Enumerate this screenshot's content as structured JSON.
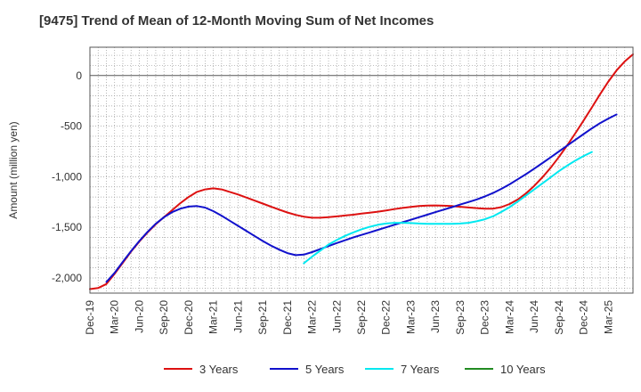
{
  "chart_data": {
    "type": "line",
    "title": "[9475]  Trend of Mean of 12-Month Moving Sum of Net Incomes",
    "xlabel": "",
    "ylabel": "Amount (million yen)",
    "ylim": [
      -2150,
      280
    ],
    "yticks": [
      0,
      -500,
      -1000,
      -1500,
      -2000
    ],
    "ytick_labels": [
      "0",
      "-500",
      "-1,000",
      "-1,500",
      "-2,000"
    ],
    "xticks": [
      "Dec-19",
      "Mar-20",
      "Jun-20",
      "Sep-20",
      "Dec-20",
      "Mar-21",
      "Jun-21",
      "Sep-21",
      "Dec-21",
      "Mar-22",
      "Jun-22",
      "Sep-22",
      "Dec-22",
      "Mar-23",
      "Jun-23",
      "Sep-23",
      "Dec-23",
      "Mar-24",
      "Jun-24",
      "Sep-24",
      "Dec-24",
      "Mar-25"
    ],
    "grid": true,
    "legend_position": "bottom",
    "series": [
      {
        "name": "3 Years",
        "color": "#dd1111",
        "points": [
          [
            0,
            -2110
          ],
          [
            1,
            -2100
          ],
          [
            2,
            -2060
          ],
          [
            3,
            -1960
          ],
          [
            4,
            -1850
          ],
          [
            5,
            -1740
          ],
          [
            6,
            -1640
          ],
          [
            7,
            -1550
          ],
          [
            8,
            -1470
          ],
          [
            9,
            -1400
          ],
          [
            10,
            -1330
          ],
          [
            11,
            -1260
          ],
          [
            12,
            -1200
          ],
          [
            13,
            -1150
          ],
          [
            14,
            -1125
          ],
          [
            15,
            -1115
          ],
          [
            16,
            -1125
          ],
          [
            17,
            -1150
          ],
          [
            18,
            -1175
          ],
          [
            19,
            -1205
          ],
          [
            20,
            -1235
          ],
          [
            21,
            -1265
          ],
          [
            22,
            -1295
          ],
          [
            23,
            -1325
          ],
          [
            24,
            -1353
          ],
          [
            25,
            -1377
          ],
          [
            26,
            -1395
          ],
          [
            27,
            -1405
          ],
          [
            28,
            -1405
          ],
          [
            29,
            -1400
          ],
          [
            30,
            -1392
          ],
          [
            31,
            -1383
          ],
          [
            32,
            -1375
          ],
          [
            33,
            -1365
          ],
          [
            34,
            -1355
          ],
          [
            35,
            -1345
          ],
          [
            36,
            -1333
          ],
          [
            37,
            -1320
          ],
          [
            38,
            -1308
          ],
          [
            39,
            -1298
          ],
          [
            40,
            -1290
          ],
          [
            41,
            -1285
          ],
          [
            42,
            -1284
          ],
          [
            43,
            -1286
          ],
          [
            44,
            -1290
          ],
          [
            45,
            -1297
          ],
          [
            46,
            -1304
          ],
          [
            47,
            -1310
          ],
          [
            48,
            -1315
          ],
          [
            49,
            -1315
          ],
          [
            50,
            -1300
          ],
          [
            51,
            -1270
          ],
          [
            52,
            -1225
          ],
          [
            53,
            -1165
          ],
          [
            54,
            -1090
          ],
          [
            55,
            -1005
          ],
          [
            56,
            -910
          ],
          [
            57,
            -805
          ],
          [
            58,
            -690
          ],
          [
            59,
            -570
          ],
          [
            60,
            -445
          ],
          [
            61,
            -315
          ],
          [
            62,
            -185
          ],
          [
            63,
            -60
          ],
          [
            64,
            50
          ],
          [
            65,
            140
          ],
          [
            66,
            210
          ]
        ]
      },
      {
        "name": "5 Years",
        "color": "#1111cc",
        "points": [
          [
            2,
            -2040
          ],
          [
            3,
            -1950
          ],
          [
            4,
            -1840
          ],
          [
            5,
            -1735
          ],
          [
            6,
            -1635
          ],
          [
            7,
            -1545
          ],
          [
            8,
            -1465
          ],
          [
            9,
            -1400
          ],
          [
            10,
            -1350
          ],
          [
            11,
            -1315
          ],
          [
            12,
            -1295
          ],
          [
            13,
            -1290
          ],
          [
            14,
            -1305
          ],
          [
            15,
            -1340
          ],
          [
            16,
            -1385
          ],
          [
            17,
            -1435
          ],
          [
            18,
            -1485
          ],
          [
            19,
            -1535
          ],
          [
            20,
            -1585
          ],
          [
            21,
            -1635
          ],
          [
            22,
            -1680
          ],
          [
            23,
            -1720
          ],
          [
            24,
            -1755
          ],
          [
            25,
            -1775
          ],
          [
            26,
            -1770
          ],
          [
            27,
            -1745
          ],
          [
            28,
            -1715
          ],
          [
            29,
            -1685
          ],
          [
            30,
            -1655
          ],
          [
            31,
            -1628
          ],
          [
            32,
            -1600
          ],
          [
            33,
            -1575
          ],
          [
            34,
            -1550
          ],
          [
            35,
            -1525
          ],
          [
            36,
            -1500
          ],
          [
            37,
            -1475
          ],
          [
            38,
            -1450
          ],
          [
            39,
            -1425
          ],
          [
            40,
            -1400
          ],
          [
            41,
            -1375
          ],
          [
            42,
            -1350
          ],
          [
            43,
            -1325
          ],
          [
            44,
            -1300
          ],
          [
            45,
            -1275
          ],
          [
            46,
            -1250
          ],
          [
            47,
            -1225
          ],
          [
            48,
            -1195
          ],
          [
            49,
            -1160
          ],
          [
            50,
            -1120
          ],
          [
            51,
            -1075
          ],
          [
            52,
            -1025
          ],
          [
            53,
            -975
          ],
          [
            54,
            -920
          ],
          [
            55,
            -865
          ],
          [
            56,
            -808
          ],
          [
            57,
            -750
          ],
          [
            58,
            -692
          ],
          [
            59,
            -635
          ],
          [
            60,
            -578
          ],
          [
            61,
            -522
          ],
          [
            62,
            -470
          ],
          [
            63,
            -425
          ],
          [
            64,
            -385
          ]
        ]
      },
      {
        "name": "7 Years",
        "color": "#00e8f0",
        "points": [
          [
            26,
            -1855
          ],
          [
            27,
            -1790
          ],
          [
            28,
            -1730
          ],
          [
            29,
            -1670
          ],
          [
            30,
            -1625
          ],
          [
            31,
            -1585
          ],
          [
            32,
            -1550
          ],
          [
            33,
            -1520
          ],
          [
            34,
            -1495
          ],
          [
            35,
            -1475
          ],
          [
            36,
            -1462
          ],
          [
            37,
            -1455
          ],
          [
            38,
            -1455
          ],
          [
            39,
            -1458
          ],
          [
            40,
            -1462
          ],
          [
            41,
            -1465
          ],
          [
            42,
            -1466
          ],
          [
            43,
            -1466
          ],
          [
            44,
            -1465
          ],
          [
            45,
            -1462
          ],
          [
            46,
            -1455
          ],
          [
            47,
            -1440
          ],
          [
            48,
            -1420
          ],
          [
            49,
            -1390
          ],
          [
            50,
            -1348
          ],
          [
            51,
            -1300
          ],
          [
            52,
            -1245
          ],
          [
            53,
            -1185
          ],
          [
            54,
            -1125
          ],
          [
            55,
            -1065
          ],
          [
            56,
            -1005
          ],
          [
            57,
            -945
          ],
          [
            58,
            -890
          ],
          [
            59,
            -840
          ],
          [
            60,
            -795
          ],
          [
            61,
            -755
          ]
        ]
      },
      {
        "name": "10 Years",
        "color": "#228b22",
        "points": []
      }
    ]
  }
}
